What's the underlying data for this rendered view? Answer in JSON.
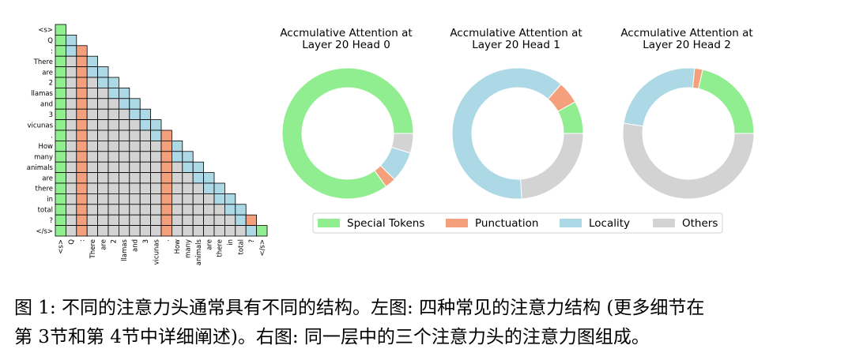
{
  "colors": {
    "special": "#90ee90",
    "punctuation": "#f4a07c",
    "locality": "#add8e6",
    "others": "#d3d3d3",
    "grid": "#000000"
  },
  "chart_data": [
    {
      "type": "heatmap",
      "title": "",
      "tokens": [
        "<s>",
        "Q",
        ":",
        "There",
        "are",
        "2",
        "llamas",
        "and",
        "3",
        "vicunas",
        ".",
        "How",
        "many",
        "animals",
        "are",
        "there",
        "in",
        "total",
        "?",
        "</s>"
      ],
      "categories_legend": [
        "Special Tokens",
        "Punctuation",
        "Locality",
        "Others"
      ],
      "rules": {
        "lower_triangular": true,
        "special_columns": [
          0
        ],
        "special_diagonal_rows": [
          19
        ],
        "punctuation_columns": [
          2,
          10
        ],
        "punctuation_diagonal_rows": [
          18
        ],
        "locality_window": 2,
        "others": "remaining lower-triangle cells"
      }
    },
    {
      "type": "pie",
      "donut": true,
      "title": "Accmulative Attention at\nLayer 20 Head 0",
      "labels": [
        "Special Tokens",
        "Punctuation",
        "Locality",
        "Others"
      ],
      "values": [
        79,
        2.5,
        7,
        4.5
      ]
    },
    {
      "type": "pie",
      "donut": true,
      "title": "Accmulative Attention at\nLayer 20 Head 1",
      "labels": [
        "Special Tokens",
        "Punctuation",
        "Locality",
        "Others"
      ],
      "values": [
        8,
        5.5,
        62.5,
        24
      ]
    },
    {
      "type": "pie",
      "donut": true,
      "title": "Accmulative Attention at\nLayer 20 Head 2",
      "labels": [
        "Special Tokens",
        "Punctuation",
        "Locality",
        "Others"
      ],
      "values": [
        21.5,
        2,
        24,
        52.5
      ]
    }
  ],
  "legend": {
    "items": [
      "Special Tokens",
      "Punctuation",
      "Locality",
      "Others"
    ]
  },
  "caption": {
    "line1": "图 1: 不同的注意力头通常具有不同的结构。左图: 四种常见的注意力结构 (更多细节在",
    "line2": "第 3节和第 4节中详细阐述)。右图: 同一层中的三个注意力头的注意力图组成。"
  }
}
